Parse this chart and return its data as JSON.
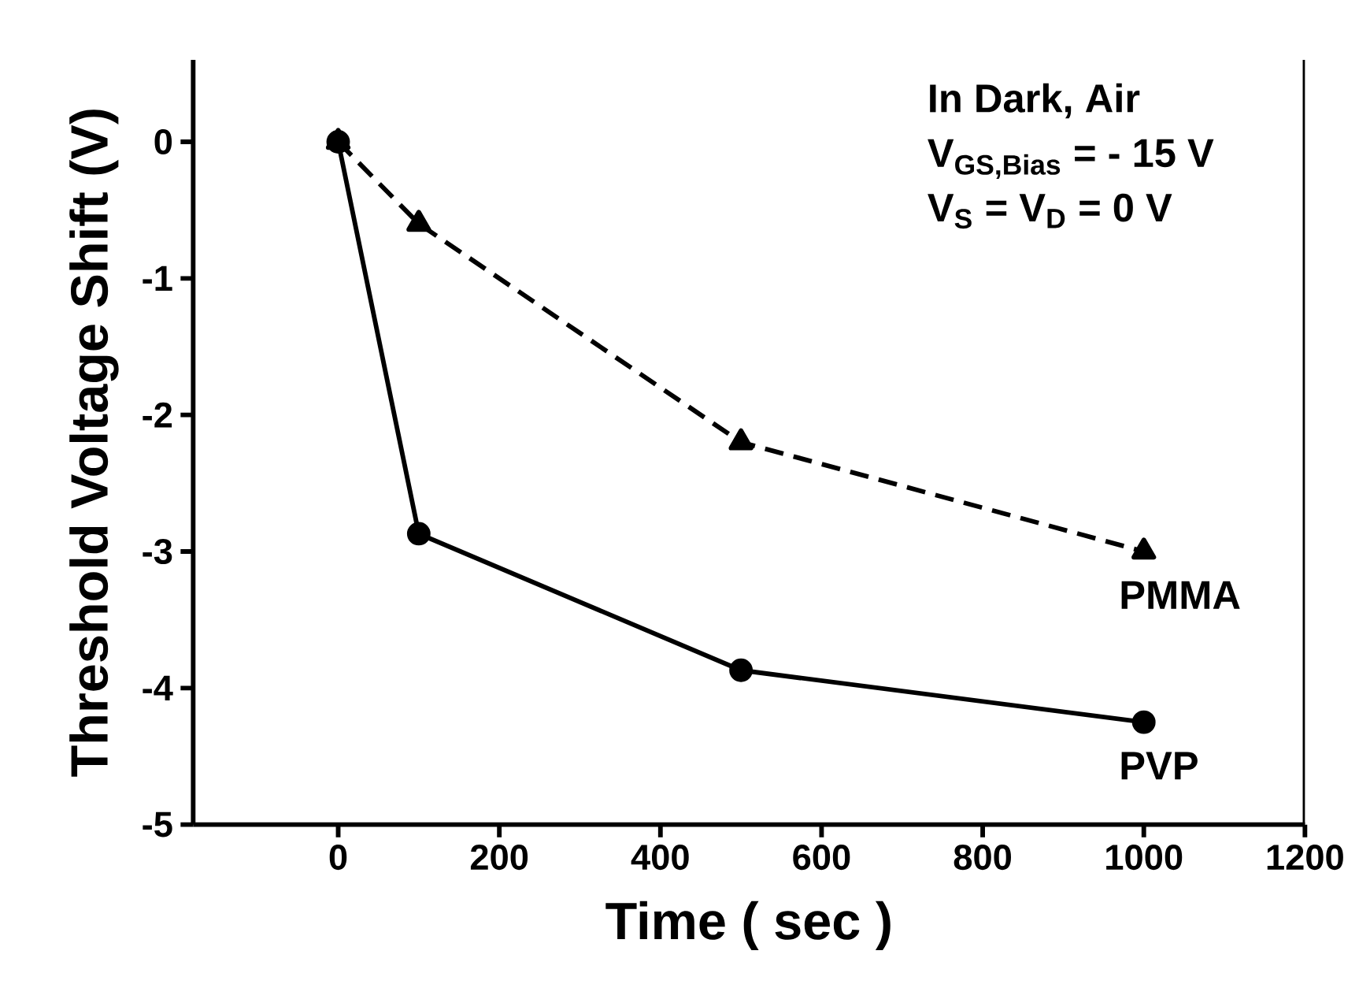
{
  "chart_data": {
    "type": "line",
    "xlabel": "Time  ( sec )",
    "ylabel": "Threshold Voltage Shift  (V)",
    "xlim": [
      -180,
      1200
    ],
    "xticks": [
      0,
      200,
      400,
      600,
      800,
      1000,
      1200
    ],
    "ylim": [
      -5,
      0.6
    ],
    "yticks": [
      -5,
      -4,
      -3,
      -2,
      -1,
      0
    ],
    "grid": false,
    "annotations": [
      "In Dark, Air",
      "V$_{GS,Bias}$ = - 15 V",
      "V$_{S}$ = V$_{D}$ = 0 V"
    ],
    "series": [
      {
        "name": "PVP",
        "color": "#000000",
        "marker": "circle",
        "line_style": "solid",
        "x": [
          0,
          100,
          500,
          1000
        ],
        "values": [
          0,
          -2.87,
          -3.87,
          -4.25
        ]
      },
      {
        "name": "PMMA",
        "color": "#000000",
        "marker": "triangle",
        "line_style": "dashed",
        "x": [
          0,
          100,
          500,
          1000
        ],
        "values": [
          0,
          -0.6,
          -2.2,
          -3.0
        ]
      }
    ]
  }
}
